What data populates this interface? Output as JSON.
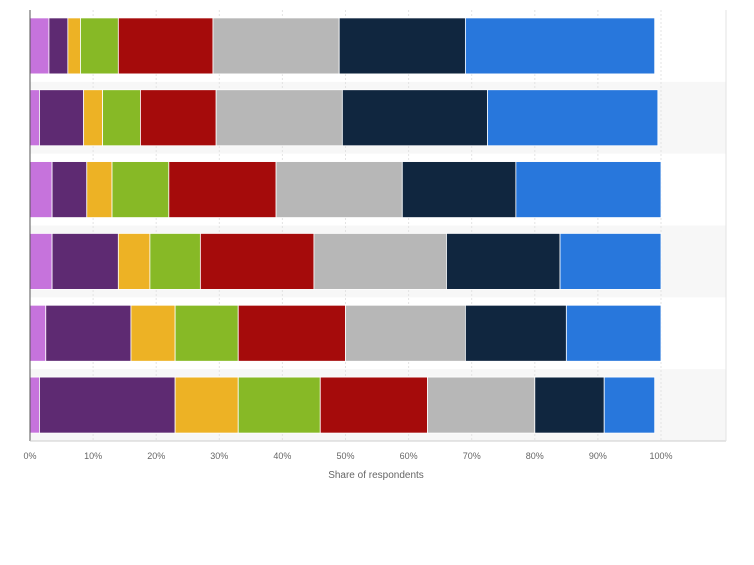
{
  "chart_data": {
    "type": "bar",
    "orientation": "horizontal",
    "stacked": true,
    "xlabel": "Share of respondents",
    "x_ticks": [
      "0%",
      "10%",
      "20%",
      "30%",
      "40%",
      "50%",
      "60%",
      "70%",
      "80%",
      "90%",
      "100%"
    ],
    "xlim": [
      0,
      100
    ],
    "grid": true,
    "legend": "none",
    "series_colors": [
      "#c673dc",
      "#5e2a72",
      "#edb225",
      "#87b926",
      "#a50b0b",
      "#b7b7b7",
      "#10263f",
      "#2877dc"
    ],
    "series": [
      {
        "values": [
          3,
          1.5,
          3.5,
          3.5,
          2.5,
          1.5
        ]
      },
      {
        "values": [
          3,
          7,
          5.5,
          10.5,
          13.5,
          21.5
        ]
      },
      {
        "values": [
          2,
          3,
          4,
          5,
          7,
          10
        ]
      },
      {
        "values": [
          6,
          6,
          9,
          8,
          10,
          13
        ]
      },
      {
        "values": [
          15,
          12,
          17,
          18,
          17,
          17
        ]
      },
      {
        "values": [
          20,
          20,
          20,
          21,
          19,
          17
        ]
      },
      {
        "values": [
          20,
          23,
          18,
          18,
          16,
          11
        ]
      },
      {
        "values": [
          30,
          27,
          23,
          16,
          15,
          8
        ]
      }
    ]
  }
}
